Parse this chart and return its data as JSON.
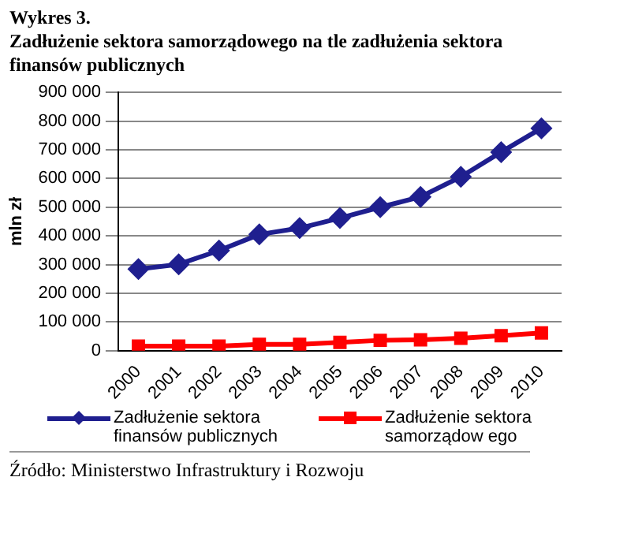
{
  "chart_data": {
    "type": "line",
    "title": "Wykres 3.",
    "subtitle": "Zadłużenie sektora samorządowego na tle zadłużenia sektora finansów publicznych",
    "ylabel": "mln zł",
    "categories": [
      "2000",
      "2001",
      "2002",
      "2003",
      "2004",
      "2005",
      "2006",
      "2007",
      "2008",
      "2009",
      "2010"
    ],
    "series": [
      {
        "name": "Zadłużenie sektora finansów publicznych",
        "color": "#1f1f8f",
        "marker": "diamond",
        "values": [
          284000,
          301000,
          349000,
          405000,
          427000,
          462000,
          500000,
          536000,
          606000,
          692000,
          775000
        ]
      },
      {
        "name": "Zadłużenie sektora samorządow ego",
        "color": "#ff0000",
        "marker": "square",
        "values": [
          16000,
          16000,
          16000,
          22000,
          22000,
          29000,
          36000,
          38000,
          43000,
          52000,
          62000
        ]
      }
    ],
    "ylim": [
      0,
      900000
    ],
    "yticks": [
      {
        "value": 0,
        "label": "0"
      },
      {
        "value": 100000,
        "label": "100 000"
      },
      {
        "value": 200000,
        "label": "200 000"
      },
      {
        "value": 300000,
        "label": "300 000"
      },
      {
        "value": 400000,
        "label": "400 000"
      },
      {
        "value": 500000,
        "label": "500 000"
      },
      {
        "value": 600000,
        "label": "600 000"
      },
      {
        "value": 700000,
        "label": "700 000"
      },
      {
        "value": 800000,
        "label": "800 000"
      },
      {
        "value": 900000,
        "label": "900 000"
      }
    ],
    "grid": "y",
    "legend": "bottom",
    "line_style": "solid",
    "annotations": [
      "Źródło: Ministerstwo Infrastruktury i Rozwoju"
    ]
  }
}
